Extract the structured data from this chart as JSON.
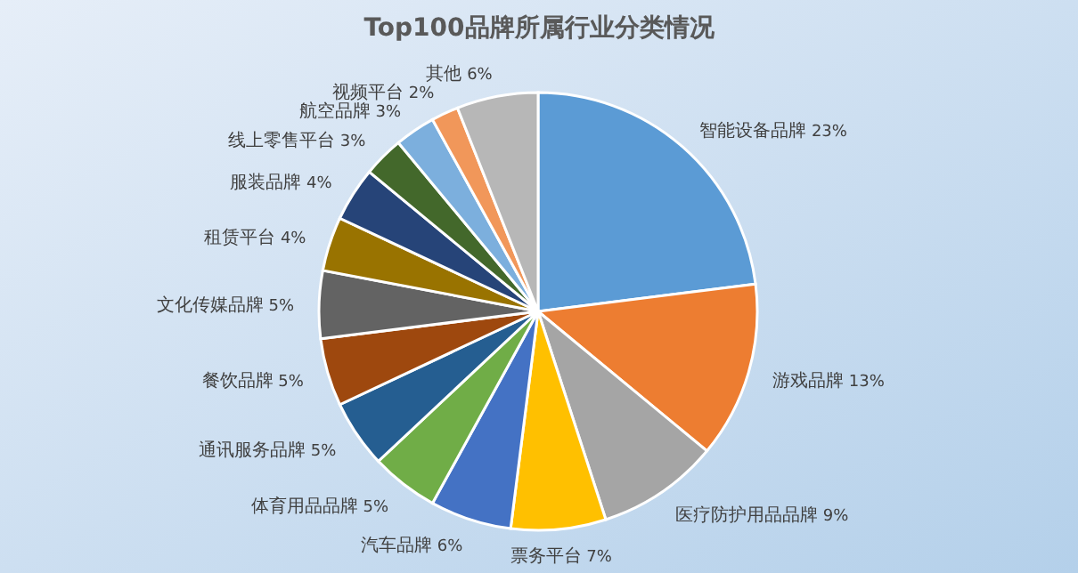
{
  "chart_data": {
    "type": "pie",
    "title": "Top100品牌所属行业分类情况",
    "categories": [
      "智能设备品牌",
      "游戏品牌",
      "医疗防护用品品牌",
      "票务平台",
      "汽车品牌",
      "体育用品品牌",
      "通讯服务品牌",
      "餐饮品牌",
      "文化传媒品牌",
      "租赁平台",
      "服装品牌",
      "线上零售平台",
      "航空品牌",
      "视频平台",
      "其他"
    ],
    "values": [
      23,
      13,
      9,
      7,
      6,
      5,
      5,
      5,
      5,
      4,
      4,
      3,
      3,
      2,
      6
    ],
    "value_labels": [
      "23%",
      "13%",
      "9%",
      "7%",
      "6%",
      "5%",
      "5%",
      "5%",
      "5%",
      "4%",
      "4%",
      "3%",
      "3%",
      "2%",
      "6%"
    ],
    "colors": [
      "#5b9bd5",
      "#ed7d31",
      "#a5a5a5",
      "#ffc000",
      "#4472c4",
      "#70ad47",
      "#255e91",
      "#9e480e",
      "#636363",
      "#997300",
      "#264478",
      "#43682b",
      "#7cafdd",
      "#f1975a",
      "#b7b7b7"
    ]
  }
}
